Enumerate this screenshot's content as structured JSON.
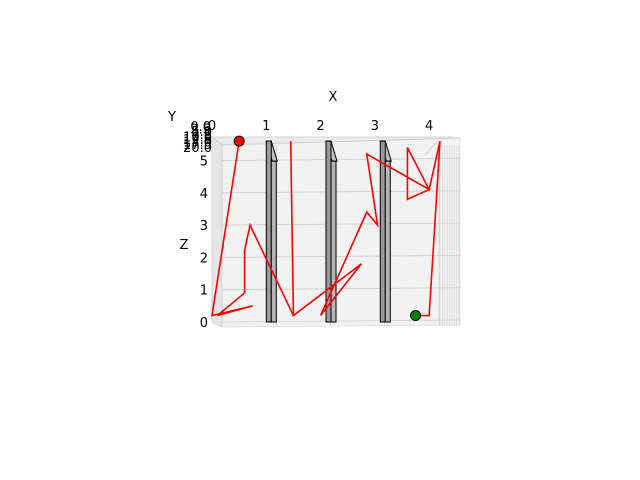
{
  "chart_data": {
    "type": "line",
    "projection": "3d",
    "title": "",
    "xlabel": "X",
    "ylabel": "Y",
    "zlabel": "Z",
    "xlim": [
      0,
      4.2
    ],
    "zlim": [
      0,
      5.5
    ],
    "x_ticks": [
      "0",
      "1",
      "2",
      "3",
      "4"
    ],
    "z_ticks": [
      "0",
      "1",
      "2",
      "3",
      "4",
      "5"
    ],
    "y_ticks": [
      "0.0",
      "2.5",
      "5.0",
      "7.5",
      "10.0",
      "12.5",
      "15.0",
      "17.5",
      "20.0"
    ],
    "grid": true,
    "walls": [
      {
        "x": 1.0,
        "z_top": 5.6
      },
      {
        "x": 2.1,
        "z_top": 5.6
      },
      {
        "x": 3.1,
        "z_top": 5.6
      }
    ],
    "path": {
      "name": "",
      "color": "#ff0000",
      "points": [
        [
          0.5,
          5.6
        ],
        [
          0.0,
          0.2
        ],
        [
          0.75,
          0.5
        ],
        [
          0.1,
          0.2
        ],
        [
          0.6,
          0.9
        ],
        [
          0.6,
          2.2
        ],
        [
          0.7,
          3.0
        ],
        [
          1.5,
          0.2
        ],
        [
          1.45,
          5.6
        ],
        [
          1.5,
          0.2
        ],
        [
          2.75,
          1.8
        ],
        [
          2.0,
          0.2
        ],
        [
          2.85,
          3.4
        ],
        [
          3.05,
          3.0
        ],
        [
          2.85,
          5.2
        ],
        [
          4.0,
          4.1
        ],
        [
          3.6,
          3.8
        ],
        [
          3.6,
          5.4
        ],
        [
          4.0,
          4.1
        ],
        [
          4.2,
          5.6
        ],
        [
          4.0,
          0.2
        ],
        [
          3.75,
          0.2
        ]
      ]
    },
    "start_point": {
      "x": 0.5,
      "z": 5.6,
      "color": "#ff0000"
    },
    "end_point": {
      "x": 3.75,
      "z": 0.2,
      "color": "#008000"
    }
  }
}
